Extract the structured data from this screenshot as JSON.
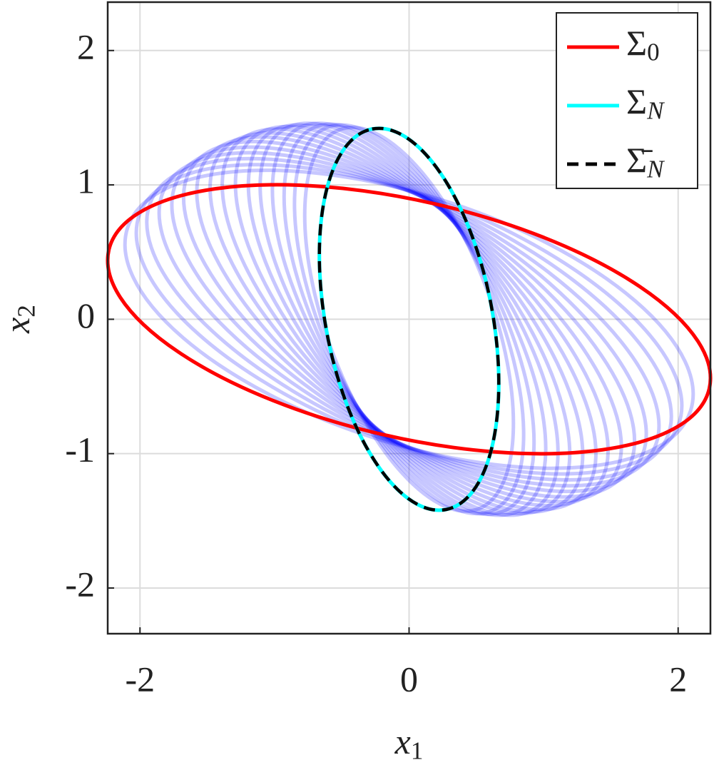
{
  "chart_data": {
    "type": "ellipse",
    "xlabel": "x1",
    "ylabel": "x2",
    "xlim": [
      -2.24,
      2.24
    ],
    "ylim": [
      -2.34,
      2.36
    ],
    "xticks": [
      -2,
      0,
      2
    ],
    "yticks": [
      -2,
      -1,
      0,
      1,
      2
    ],
    "grid": true,
    "legend": "upper right",
    "center": [
      0,
      0
    ],
    "series": [
      {
        "name": "Σ0",
        "color": "#ff0000",
        "a": 2.29,
        "b": 0.88,
        "angle": -13
      },
      {
        "name": "ΣN",
        "color": "#00ffff",
        "a": 1.44,
        "b": 0.62,
        "angle": 101
      },
      {
        "name": "Σ̄N",
        "color": "#000000",
        "dashed": true,
        "a": 1.44,
        "b": 0.62,
        "angle": 101
      }
    ],
    "ensemble": {
      "color": "#0000ff",
      "alpha": 0.22,
      "ellipses": [
        {
          "a": 2.2,
          "b": 0.92,
          "angle": -18
        },
        {
          "a": 2.15,
          "b": 0.9,
          "angle": -21.5
        },
        {
          "a": 2.11,
          "b": 0.88,
          "angle": -24.9
        },
        {
          "a": 2.06,
          "b": 0.86,
          "angle": -28.4
        },
        {
          "a": 2.01,
          "b": 0.84,
          "angle": -31.9
        },
        {
          "a": 1.97,
          "b": 0.82,
          "angle": -35.3
        },
        {
          "a": 1.92,
          "b": 0.8,
          "angle": -38.8
        },
        {
          "a": 1.87,
          "b": 0.78,
          "angle": -42.3
        },
        {
          "a": 1.83,
          "b": 0.76,
          "angle": -45.7
        },
        {
          "a": 1.78,
          "b": 0.74,
          "angle": -49.2
        },
        {
          "a": 1.73,
          "b": 0.72,
          "angle": -52.7
        },
        {
          "a": 1.69,
          "b": 0.7,
          "angle": -56.1
        },
        {
          "a": 1.64,
          "b": 0.68,
          "angle": -59.6
        },
        {
          "a": 1.59,
          "b": 0.66,
          "angle": -63.1
        },
        {
          "a": 1.55,
          "b": 0.64,
          "angle": -66.5
        },
        {
          "a": 1.5,
          "b": 0.62,
          "angle": -70
        }
      ]
    }
  }
}
